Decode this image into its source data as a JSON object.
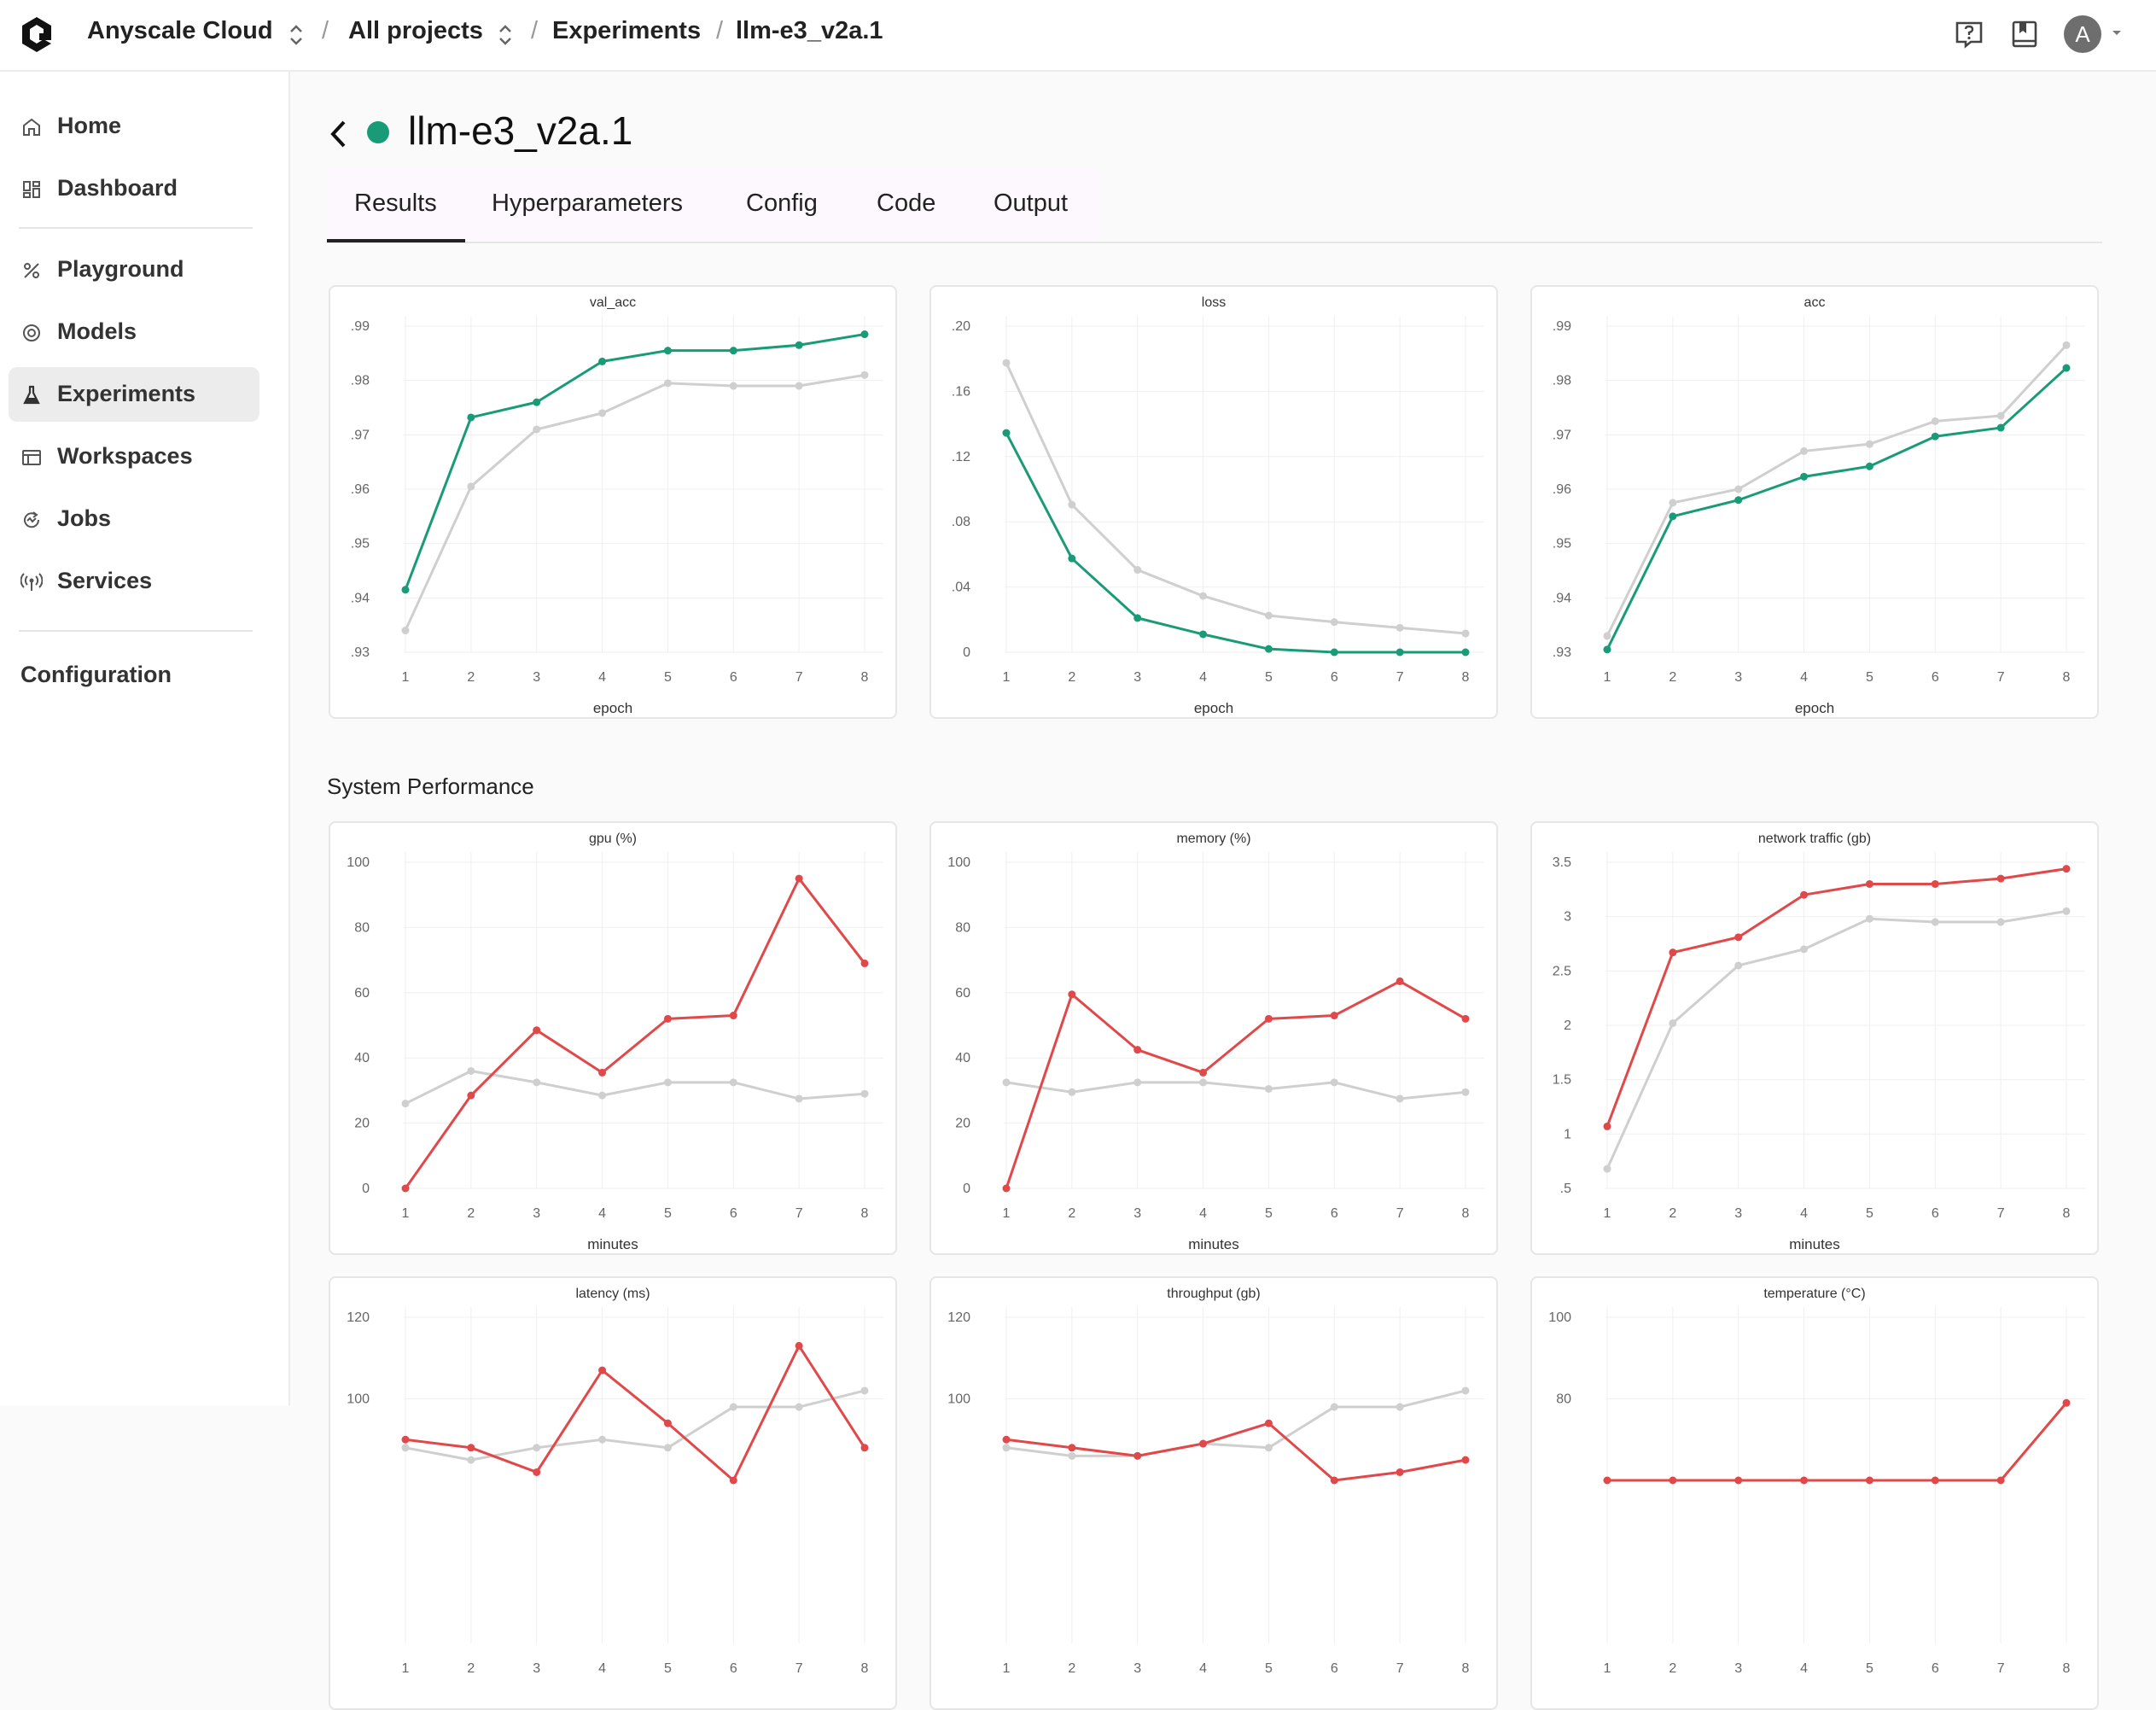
{
  "header": {
    "org": "Anyscale Cloud",
    "project": "All projects",
    "section": "Experiments",
    "current": "llm-e3_v2a.1",
    "avatar_letter": "A"
  },
  "sidebar": {
    "items": [
      {
        "label": "Home",
        "icon": "home-icon"
      },
      {
        "label": "Dashboard",
        "icon": "dashboard-icon"
      },
      {
        "label": "Playground",
        "icon": "playground-icon"
      },
      {
        "label": "Models",
        "icon": "models-icon"
      },
      {
        "label": "Experiments",
        "icon": "flask-icon",
        "active": true
      },
      {
        "label": "Workspaces",
        "icon": "workspace-icon"
      },
      {
        "label": "Jobs",
        "icon": "jobs-icon"
      },
      {
        "label": "Services",
        "icon": "broadcast-icon"
      }
    ],
    "configuration": "Configuration"
  },
  "page": {
    "title": "llm-e3_v2a.1",
    "status_color": "#1a9b77",
    "tabs": [
      "Results",
      "Hyperparameters",
      "Config",
      "Code",
      "Output"
    ],
    "active_tab": "Results",
    "section_title": "System Performance"
  },
  "colors": {
    "green": "#1a9b77",
    "red": "#e0484a",
    "gray": "#cfcfcf"
  },
  "chart_data": [
    {
      "type": "line",
      "title": "val_acc",
      "xlabel": "epoch",
      "x": [
        1,
        2,
        3,
        4,
        5,
        6,
        7,
        8
      ],
      "ylim": [
        0.93,
        0.99
      ],
      "yticks": [
        0.93,
        0.94,
        0.95,
        0.96,
        0.97,
        0.98,
        0.99
      ],
      "ytick_labels": [
        ".93",
        ".94",
        ".95",
        ".96",
        ".97",
        ".98",
        ".99"
      ],
      "series": [
        {
          "color": "#cfcfcf",
          "values": [
            0.934,
            0.9605,
            0.971,
            0.974,
            0.9795,
            0.979,
            0.979,
            0.981
          ]
        },
        {
          "color": "#1a9b77",
          "values": [
            0.9415,
            0.9732,
            0.976,
            0.9835,
            0.9855,
            0.9855,
            0.9865,
            0.9885
          ]
        }
      ]
    },
    {
      "type": "line",
      "title": "loss",
      "xlabel": "epoch",
      "x": [
        1,
        2,
        3,
        4,
        5,
        6,
        7,
        8
      ],
      "ylim": [
        0,
        0.2
      ],
      "yticks": [
        0,
        0.04,
        0.08,
        0.12,
        0.16,
        0.2
      ],
      "ytick_labels": [
        "0",
        ".04",
        ".08",
        ".12",
        ".16",
        ".20"
      ],
      "series": [
        {
          "color": "#cfcfcf",
          "values": [
            0.1775,
            0.0905,
            0.0505,
            0.0345,
            0.0225,
            0.0185,
            0.015,
            0.0115
          ]
        },
        {
          "color": "#1a9b77",
          "values": [
            0.1345,
            0.0575,
            0.021,
            0.011,
            0.002,
            0,
            0,
            0
          ]
        }
      ]
    },
    {
      "type": "line",
      "title": "acc",
      "xlabel": "epoch",
      "x": [
        1,
        2,
        3,
        4,
        5,
        6,
        7,
        8
      ],
      "ylim": [
        0.93,
        0.99
      ],
      "yticks": [
        0.93,
        0.94,
        0.95,
        0.96,
        0.97,
        0.98,
        0.99
      ],
      "ytick_labels": [
        ".93",
        ".94",
        ".95",
        ".96",
        ".97",
        ".98",
        ".99"
      ],
      "series": [
        {
          "color": "#cfcfcf",
          "values": [
            0.933,
            0.9575,
            0.96,
            0.967,
            0.9683,
            0.9725,
            0.9735,
            0.9865
          ]
        },
        {
          "color": "#1a9b77",
          "values": [
            0.9305,
            0.955,
            0.958,
            0.9623,
            0.9642,
            0.9697,
            0.9713,
            0.9823
          ]
        }
      ]
    },
    {
      "type": "line",
      "title": "gpu (%)",
      "xlabel": "minutes",
      "x": [
        1,
        2,
        3,
        4,
        5,
        6,
        7,
        8
      ],
      "ylim": [
        0,
        100
      ],
      "yticks": [
        0,
        20,
        40,
        60,
        80,
        100
      ],
      "ytick_labels": [
        "0",
        "20",
        "40",
        "60",
        "80",
        "100"
      ],
      "series": [
        {
          "color": "#cfcfcf",
          "values": [
            26,
            36,
            32.5,
            28.5,
            32.5,
            32.5,
            27.5,
            29
          ]
        },
        {
          "color": "#e0484a",
          "values": [
            0,
            28.5,
            48.5,
            35.5,
            52,
            53,
            95,
            69
          ]
        }
      ]
    },
    {
      "type": "line",
      "title": "memory (%)",
      "xlabel": "minutes",
      "x": [
        1,
        2,
        3,
        4,
        5,
        6,
        7,
        8
      ],
      "ylim": [
        0,
        100
      ],
      "yticks": [
        0,
        20,
        40,
        60,
        80,
        100
      ],
      "ytick_labels": [
        "0",
        "20",
        "40",
        "60",
        "80",
        "100"
      ],
      "series": [
        {
          "color": "#cfcfcf",
          "values": [
            32.5,
            29.5,
            32.5,
            32.5,
            30.5,
            32.5,
            27.5,
            29.5
          ]
        },
        {
          "color": "#e0484a",
          "values": [
            0,
            59.5,
            42.5,
            35.5,
            52,
            53,
            63.5,
            52
          ]
        }
      ]
    },
    {
      "type": "line",
      "title": "network traffic (gb)",
      "xlabel": "minutes",
      "x": [
        1,
        2,
        3,
        4,
        5,
        6,
        7,
        8
      ],
      "ylim": [
        0.5,
        3.5
      ],
      "yticks": [
        0.5,
        1,
        1.5,
        2,
        2.5,
        3,
        3.5
      ],
      "ytick_labels": [
        ".5",
        "1",
        "1.5",
        "2",
        "2.5",
        "3",
        "3.5"
      ],
      "series": [
        {
          "color": "#cfcfcf",
          "values": [
            0.68,
            2.02,
            2.55,
            2.7,
            2.98,
            2.95,
            2.95,
            3.05
          ]
        },
        {
          "color": "#e0484a",
          "values": [
            1.07,
            2.67,
            2.81,
            3.2,
            3.3,
            3.3,
            3.35,
            3.44
          ]
        }
      ]
    },
    {
      "type": "line",
      "title": "latency (ms)",
      "xlabel": "",
      "x": [
        1,
        2,
        3,
        4,
        5,
        6,
        7,
        8
      ],
      "ylim": [
        40,
        120
      ],
      "yticks": [
        100,
        120
      ],
      "ytick_labels": [
        "100",
        "120"
      ],
      "series": [
        {
          "color": "#cfcfcf",
          "values": [
            88,
            85,
            88,
            90,
            88,
            98,
            98,
            102
          ]
        },
        {
          "color": "#e0484a",
          "values": [
            90,
            88,
            82,
            107,
            94,
            80,
            113,
            88
          ]
        }
      ]
    },
    {
      "type": "line",
      "title": "throughput (gb)",
      "xlabel": "",
      "x": [
        1,
        2,
        3,
        4,
        5,
        6,
        7,
        8
      ],
      "ylim": [
        40,
        120
      ],
      "yticks": [
        100,
        120
      ],
      "ytick_labels": [
        "100",
        "120"
      ],
      "series": [
        {
          "color": "#cfcfcf",
          "values": [
            88,
            86,
            86,
            89,
            88,
            98,
            98,
            102
          ]
        },
        {
          "color": "#e0484a",
          "values": [
            90,
            88,
            86,
            89,
            94,
            80,
            82,
            85
          ]
        }
      ]
    },
    {
      "type": "line",
      "title": "temperature (°C)",
      "xlabel": "",
      "x": [
        1,
        2,
        3,
        4,
        5,
        6,
        7,
        8
      ],
      "ylim": [
        20,
        100
      ],
      "yticks": [
        80,
        100
      ],
      "ytick_labels": [
        "80",
        "100"
      ],
      "series": [
        {
          "color": "#e0484a",
          "values": [
            60,
            60,
            60,
            60,
            60,
            60,
            60,
            79
          ]
        }
      ]
    }
  ]
}
